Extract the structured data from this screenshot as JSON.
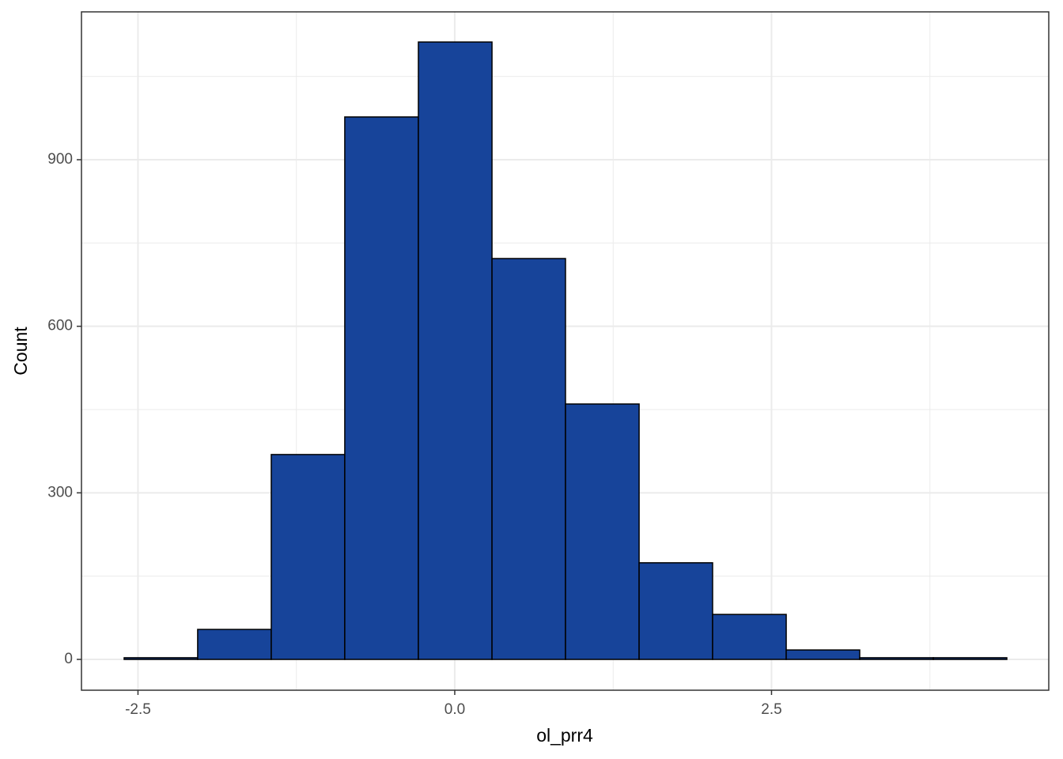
{
  "chart_data": {
    "type": "histogram",
    "x_label": "ol_prr4",
    "y_label": "Count",
    "bins": [
      -2.609,
      -2.029,
      -1.448,
      -0.868,
      -0.287,
      0.294,
      0.874,
      1.455,
      2.035,
      2.616,
      3.196,
      3.777,
      4.357
    ],
    "values": [
      3,
      54,
      369,
      977,
      1112,
      722,
      460,
      174,
      81,
      17,
      3,
      3
    ],
    "color": "#17449a",
    "xlim": [
      -2.946,
      4.688
    ],
    "ylim": [
      -55.5,
      1166.3
    ],
    "xticks": [
      -2.5,
      {
        "value": 0,
        "label": "0.0"
      },
      2.5
    ],
    "yticks": [
      0,
      300,
      600,
      900
    ],
    "grid": true,
    "minor_grid": true
  }
}
